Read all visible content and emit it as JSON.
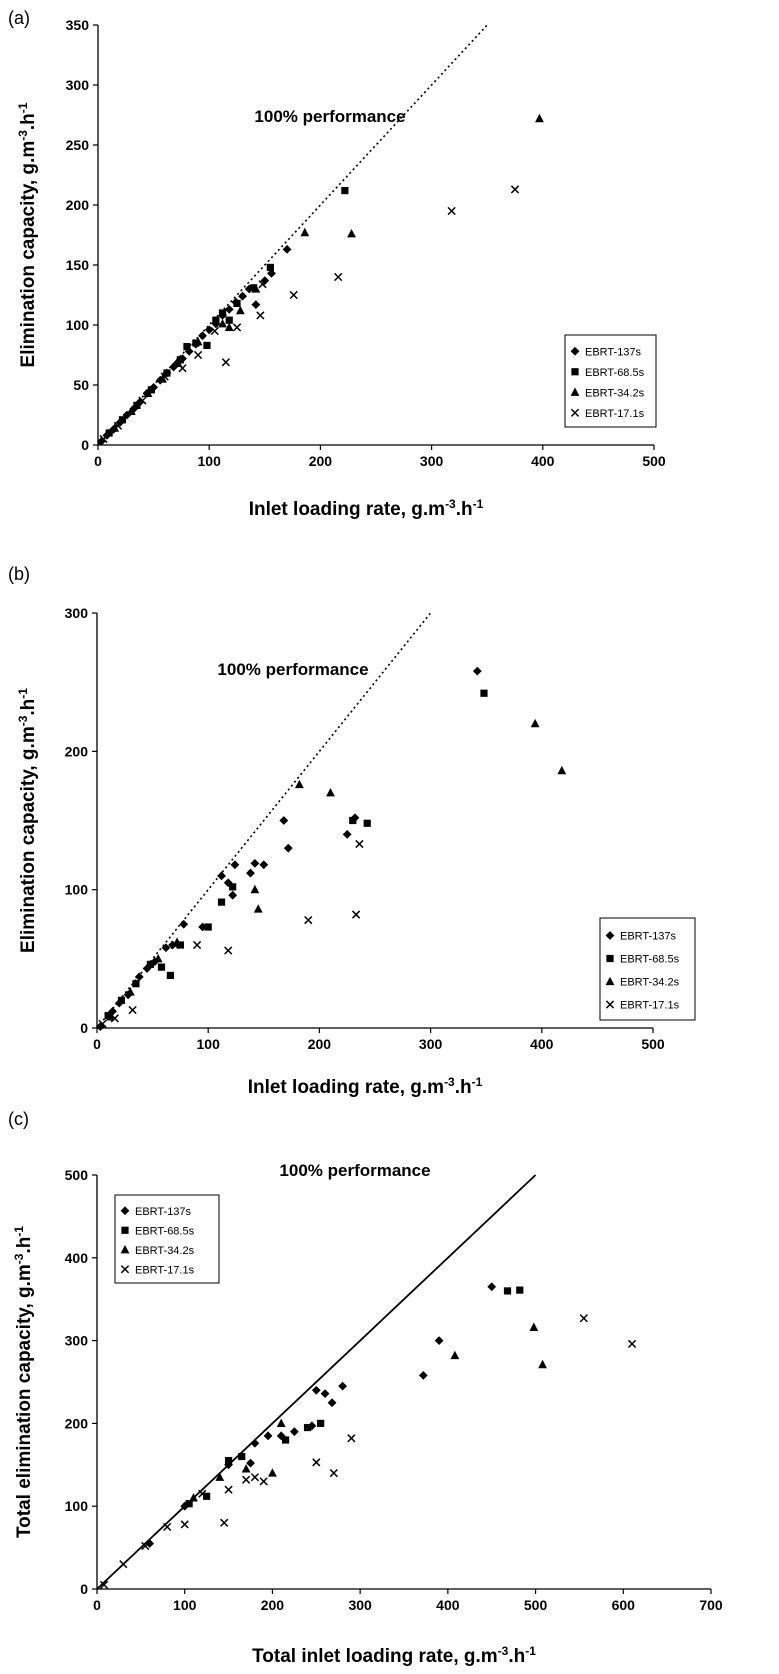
{
  "chart_data": [
    {
      "type": "scatter",
      "panel_label": "(a)",
      "xlabel": "Inlet loading rate, g.m-3.h-1",
      "ylabel": "Elimination capacity, g.m-3.h-1",
      "xlim": [
        0,
        500
      ],
      "ylim": [
        0,
        350
      ],
      "xticks": [
        "0",
        "100",
        "200",
        "300",
        "400",
        "500"
      ],
      "yticks": [
        "0",
        "50",
        "100",
        "150",
        "200",
        "250",
        "300",
        "350"
      ],
      "reference_line": {
        "label": "100% performance",
        "style": "dotted",
        "x": [
          0,
          350
        ],
        "y": [
          0,
          350
        ]
      },
      "legend_position": "bottom-right",
      "series": [
        {
          "name": "EBRT-137s",
          "marker": "diamond",
          "points": [
            [
              3,
              3
            ],
            [
              8,
              8
            ],
            [
              14,
              13
            ],
            [
              20,
              19
            ],
            [
              26,
              25
            ],
            [
              32,
              30
            ],
            [
              38,
              36
            ],
            [
              44,
              43
            ],
            [
              50,
              48
            ],
            [
              56,
              54
            ],
            [
              62,
              60
            ],
            [
              68,
              65
            ],
            [
              72,
              69
            ],
            [
              76,
              72
            ],
            [
              82,
              78
            ],
            [
              88,
              84
            ],
            [
              94,
              91
            ],
            [
              100,
              96
            ],
            [
              106,
              101
            ],
            [
              112,
              108
            ],
            [
              118,
              113
            ],
            [
              124,
              119
            ],
            [
              130,
              124
            ],
            [
              136,
              130
            ],
            [
              142,
              117
            ],
            [
              150,
              137
            ],
            [
              156,
              143
            ],
            [
              170,
              163
            ]
          ]
        },
        {
          "name": "EBRT-68.5s",
          "marker": "square",
          "points": [
            [
              10,
              10
            ],
            [
              22,
              21
            ],
            [
              35,
              33
            ],
            [
              48,
              46
            ],
            [
              62,
              60
            ],
            [
              74,
              71
            ],
            [
              80,
              82
            ],
            [
              88,
              85
            ],
            [
              98,
              83
            ],
            [
              106,
              104
            ],
            [
              112,
              110
            ],
            [
              118,
              104
            ],
            [
              125,
              118
            ],
            [
              140,
              131
            ],
            [
              155,
              148
            ],
            [
              222,
              212
            ]
          ]
        },
        {
          "name": "EBRT-34.2s",
          "marker": "triangle",
          "points": [
            [
              15,
              14
            ],
            [
              30,
              28
            ],
            [
              45,
              43
            ],
            [
              58,
              55
            ],
            [
              72,
              68
            ],
            [
              90,
              86
            ],
            [
              112,
              101
            ],
            [
              118,
              98
            ],
            [
              128,
              112
            ],
            [
              142,
              130
            ],
            [
              186,
              177
            ],
            [
              228,
              176
            ],
            [
              397,
              272
            ]
          ]
        },
        {
          "name": "EBRT-17.1s",
          "marker": "x",
          "points": [
            [
              5,
              5
            ],
            [
              18,
              16
            ],
            [
              40,
              37
            ],
            [
              60,
              57
            ],
            [
              76,
              64
            ],
            [
              90,
              75
            ],
            [
              105,
              95
            ],
            [
              115,
              69
            ],
            [
              125,
              98
            ],
            [
              146,
              108
            ],
            [
              148,
              134
            ],
            [
              176,
              125
            ],
            [
              216,
              140
            ],
            [
              318,
              195
            ],
            [
              375,
              213
            ]
          ]
        }
      ]
    },
    {
      "type": "scatter",
      "panel_label": "(b)",
      "xlabel": "Inlet loading rate, g.m-3.h-1",
      "ylabel": "Elimination capacity, g.m-3.h-1",
      "xlim": [
        0,
        500
      ],
      "ylim": [
        0,
        300
      ],
      "xticks": [
        "0",
        "100",
        "200",
        "300",
        "400",
        "500"
      ],
      "yticks": [
        "0",
        "100",
        "200",
        "300"
      ],
      "reference_line": {
        "label": "100% performance",
        "style": "dotted",
        "x": [
          0,
          300
        ],
        "y": [
          0,
          300
        ]
      },
      "legend_position": "bottom-right",
      "series": [
        {
          "name": "EBRT-137s",
          "marker": "diamond",
          "points": [
            [
              3,
              1
            ],
            [
              14,
              12
            ],
            [
              20,
              18
            ],
            [
              28,
              24
            ],
            [
              38,
              37
            ],
            [
              45,
              43
            ],
            [
              52,
              48
            ],
            [
              62,
              58
            ],
            [
              68,
              60
            ],
            [
              78,
              75
            ],
            [
              95,
              73
            ],
            [
              112,
              110
            ],
            [
              118,
              105
            ],
            [
              122,
              96
            ],
            [
              124,
              118
            ],
            [
              138,
              112
            ],
            [
              142,
              119
            ],
            [
              150,
              118
            ],
            [
              168,
              150
            ],
            [
              172,
              130
            ],
            [
              225,
              140
            ],
            [
              232,
              152
            ],
            [
              342,
              258
            ]
          ]
        },
        {
          "name": "EBRT-68.5s",
          "marker": "square",
          "points": [
            [
              10,
              9
            ],
            [
              22,
              20
            ],
            [
              35,
              32
            ],
            [
              48,
              46
            ],
            [
              58,
              44
            ],
            [
              66,
              38
            ],
            [
              75,
              60
            ],
            [
              100,
              73
            ],
            [
              112,
              91
            ],
            [
              122,
              102
            ],
            [
              230,
              150
            ],
            [
              243,
              148
            ],
            [
              348,
              242
            ]
          ]
        },
        {
          "name": "EBRT-34.2s",
          "marker": "triangle",
          "points": [
            [
              12,
              8
            ],
            [
              30,
              26
            ],
            [
              55,
              50
            ],
            [
              72,
              62
            ],
            [
              142,
              100
            ],
            [
              145,
              86
            ],
            [
              182,
              176
            ],
            [
              210,
              170
            ],
            [
              394,
              220
            ],
            [
              418,
              186
            ]
          ]
        },
        {
          "name": "EBRT-17.1s",
          "marker": "x",
          "points": [
            [
              5,
              3
            ],
            [
              16,
              7
            ],
            [
              32,
              13
            ],
            [
              70,
              60
            ],
            [
              90,
              60
            ],
            [
              118,
              56
            ],
            [
              190,
              78
            ],
            [
              233,
              82
            ],
            [
              236,
              133
            ]
          ]
        }
      ]
    },
    {
      "type": "scatter",
      "panel_label": "(c)",
      "xlabel": "Total inlet loading rate, g.m-3.h-1",
      "ylabel": "Total elimination capacity, g.m-3.h-1",
      "xlim": [
        0,
        700
      ],
      "ylim": [
        0,
        500
      ],
      "xticks": [
        "0",
        "100",
        "200",
        "300",
        "400",
        "500",
        "600",
        "700"
      ],
      "yticks": [
        "0",
        "100",
        "200",
        "300",
        "400",
        "500"
      ],
      "reference_line": {
        "label": "100% performance",
        "style": "solid",
        "x": [
          0,
          500
        ],
        "y": [
          0,
          500
        ]
      },
      "legend_position": "top-left",
      "series": [
        {
          "name": "EBRT-137s",
          "marker": "diamond",
          "points": [
            [
              60,
              55
            ],
            [
              100,
              100
            ],
            [
              150,
              150
            ],
            [
              175,
              152
            ],
            [
              180,
              176
            ],
            [
              195,
              185
            ],
            [
              210,
              185
            ],
            [
              225,
              190
            ],
            [
              245,
              197
            ],
            [
              250,
              240
            ],
            [
              260,
              236
            ],
            [
              268,
              225
            ],
            [
              280,
              245
            ],
            [
              372,
              258
            ],
            [
              390,
              300
            ],
            [
              450,
              365
            ]
          ]
        },
        {
          "name": "EBRT-68.5s",
          "marker": "square",
          "points": [
            [
              105,
              103
            ],
            [
              125,
              112
            ],
            [
              150,
              155
            ],
            [
              165,
              160
            ],
            [
              215,
              180
            ],
            [
              240,
              195
            ],
            [
              255,
              200
            ],
            [
              468,
              360
            ],
            [
              482,
              361
            ]
          ]
        },
        {
          "name": "EBRT-34.2s",
          "marker": "triangle",
          "points": [
            [
              110,
              110
            ],
            [
              140,
              135
            ],
            [
              170,
              145
            ],
            [
              200,
              140
            ],
            [
              210,
              200
            ],
            [
              498,
              316
            ],
            [
              508,
              271
            ],
            [
              408,
              282
            ]
          ]
        },
        {
          "name": "EBRT-17.1s",
          "marker": "x",
          "points": [
            [
              8,
              5
            ],
            [
              30,
              30
            ],
            [
              55,
              52
            ],
            [
              80,
              75
            ],
            [
              100,
              78
            ],
            [
              120,
              115
            ],
            [
              145,
              80
            ],
            [
              150,
              120
            ],
            [
              170,
              132
            ],
            [
              180,
              135
            ],
            [
              190,
              130
            ],
            [
              250,
              153
            ],
            [
              270,
              140
            ],
            [
              290,
              182
            ],
            [
              555,
              327
            ],
            [
              610,
              296
            ]
          ]
        }
      ]
    }
  ]
}
